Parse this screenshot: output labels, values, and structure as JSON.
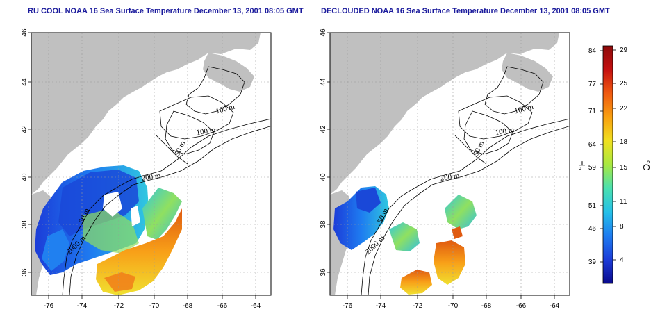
{
  "panels": [
    {
      "title": "RU COOL NOAA 16 Sea Surface Temperature December 13, 2001 08:05 GMT",
      "contour_labels": [
        "100 m",
        "100 m",
        "50 m",
        "200 m",
        "50 m",
        "2000 m"
      ]
    },
    {
      "title": "DECLOUDED NOAA 16 Sea Surface Temperature December 13, 2001 08:05 GMT",
      "contour_labels": [
        "100 m",
        "100 m",
        "50 m",
        "200 m",
        "50 m",
        "2000 m"
      ]
    }
  ],
  "axes": {
    "x_ticks": [
      "-76",
      "-74",
      "-72",
      "-70",
      "-68",
      "-66",
      "-64"
    ],
    "y_ticks": [
      "36",
      "38",
      "40",
      "42",
      "44",
      "46"
    ]
  },
  "colorbar": {
    "fahrenheit_label": "°F",
    "celsius_label": "°C",
    "fahrenheit_ticks": [
      "84",
      "77",
      "71",
      "64",
      "59",
      "51",
      "46",
      "39"
    ],
    "celsius_ticks": [
      "29",
      "25",
      "22",
      "18",
      "15",
      "11",
      "8",
      "4"
    ],
    "colors": [
      "#0a0a8c",
      "#1c3cd8",
      "#1e7cf0",
      "#25c0e8",
      "#4ae0b0",
      "#a8e840",
      "#f0e020",
      "#f8a010",
      "#f05a10",
      "#c41010",
      "#8c0a0a"
    ]
  },
  "colors": {
    "land": "#c0c0c0",
    "title": "#1a1a9c"
  }
}
